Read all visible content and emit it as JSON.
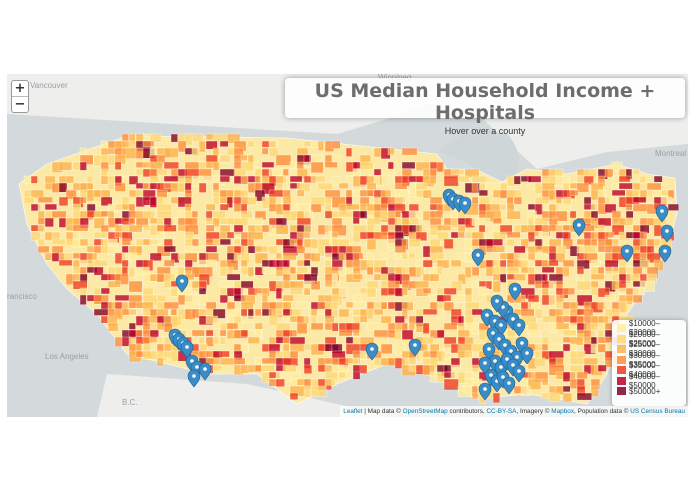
{
  "title": "US Median Household Income + Hospitals",
  "subtitle": "Hover over a county",
  "zoom": {
    "in": "+",
    "out": "−"
  },
  "legend": [
    {
      "label": "$10000–$20000",
      "color": "#ffeda0"
    },
    {
      "label": "$20000–$25000",
      "color": "#fed976"
    },
    {
      "label": "$25000–$30000",
      "color": "#feb24c"
    },
    {
      "label": "$30000–$35000",
      "color": "#fd8d3c"
    },
    {
      "label": "$35000–$40000",
      "color": "#f03b20"
    },
    {
      "label": "$40000–$50000",
      "color": "#bd0026"
    },
    {
      "label": "$50000+",
      "color": "#800026"
    }
  ],
  "cities": {
    "vancouver": "Vancouver",
    "winnipeg": "Winnipeg",
    "montreal": "Montreal",
    "los_angeles": "Los Angeles",
    "francisco": "rancisco",
    "bc": "B.C."
  },
  "attribution": {
    "leaflet": "Leaflet",
    "t1": " | Map data © ",
    "osm": "OpenStreetMap",
    "t2": " contributors, ",
    "ccbysa": "CC-BY-SA",
    "t3": ", Imagery © ",
    "mapbox": "Mapbox",
    "t4": ", Population data © ",
    "census": "US Census Bureau"
  },
  "colors": {
    "land": "#f1f1ef",
    "water": "#d4dadc",
    "marker": "#3a8cc7",
    "base": "#fde9a6"
  }
}
